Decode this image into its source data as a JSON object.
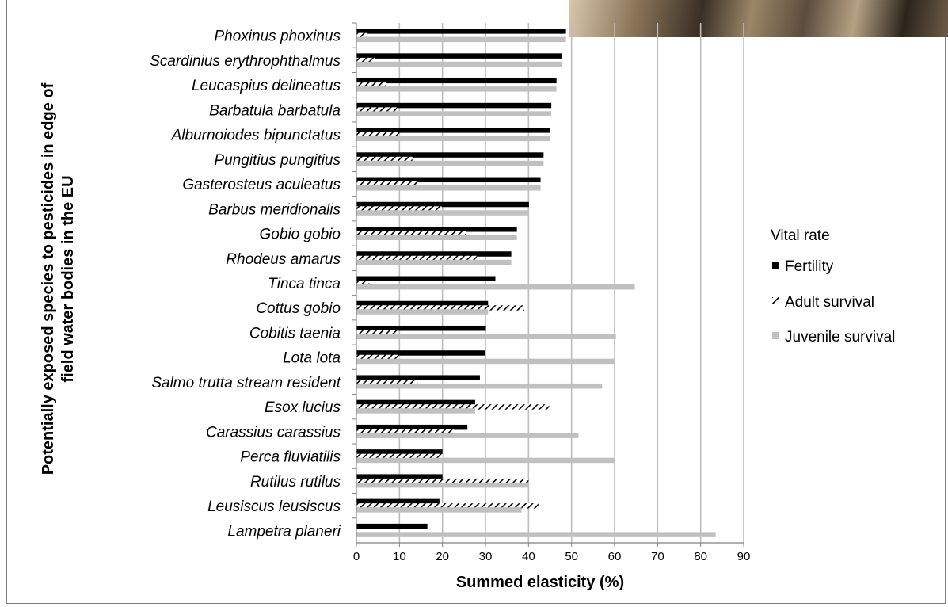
{
  "chart_data": {
    "type": "bar",
    "orientation": "horizontal",
    "categories": [
      "Phoxinus phoxinus",
      "Scardinius erythrophthalmus",
      "Leucaspius delineatus",
      "Barbatula barbatula",
      "Alburnoiodes bipunctatus",
      "Pungitius pungitius",
      "Gasterosteus aculeatus",
      "Barbus meridionalis",
      "Gobio gobio",
      "Rhodeus amarus",
      "Tinca tinca",
      "Cottus gobio",
      "Cobitis taenia",
      "Lota lota",
      "Salmo trutta stream resident",
      "Esox lucius",
      "Carassius carassius",
      "Perca fluviatilis",
      "Rutilus rutilus",
      "Leusiscus leusiscus",
      "Lampetra planeri"
    ],
    "series": [
      {
        "name": "Fertility",
        "color": "#000000",
        "pattern": "solid",
        "values": [
          48.7,
          47.8,
          46.5,
          45.3,
          45.0,
          43.5,
          42.8,
          40.1,
          37.3,
          36.0,
          32.3,
          30.6,
          30.1,
          29.9,
          28.7,
          27.6,
          25.8,
          20.0,
          20.0,
          19.3,
          16.5
        ]
      },
      {
        "name": "Adult survival",
        "color": "#000000",
        "pattern": "hatch",
        "values": [
          2.5,
          4.4,
          7.0,
          9.4,
          10.0,
          13.0,
          14.4,
          19.8,
          25.4,
          28.0,
          3.0,
          39.0,
          9.6,
          10.0,
          14.2,
          44.8,
          22.6,
          20.0,
          40.0,
          42.3,
          0
        ]
      },
      {
        "name": "Juvenile survival",
        "color": "#c0c0c0",
        "pattern": "solid",
        "values": [
          48.7,
          47.8,
          46.5,
          45.3,
          45.0,
          43.5,
          42.8,
          40.1,
          37.3,
          36.0,
          64.7,
          30.6,
          60.3,
          60.1,
          57.1,
          27.6,
          51.6,
          60.0,
          40.0,
          38.4,
          83.5
        ]
      }
    ],
    "xlim": [
      0,
      90
    ],
    "xticks": [
      "0",
      "10",
      "20",
      "30",
      "40",
      "50",
      "60",
      "70",
      "80",
      "90"
    ],
    "xlabel": "Summed elasticity (%)",
    "ylabel": "Potentially exposed species to pesticides in edge of field water bodies in the EU",
    "grid": "vertical",
    "legend": {
      "title": "Vital rate",
      "placement": "right"
    }
  }
}
